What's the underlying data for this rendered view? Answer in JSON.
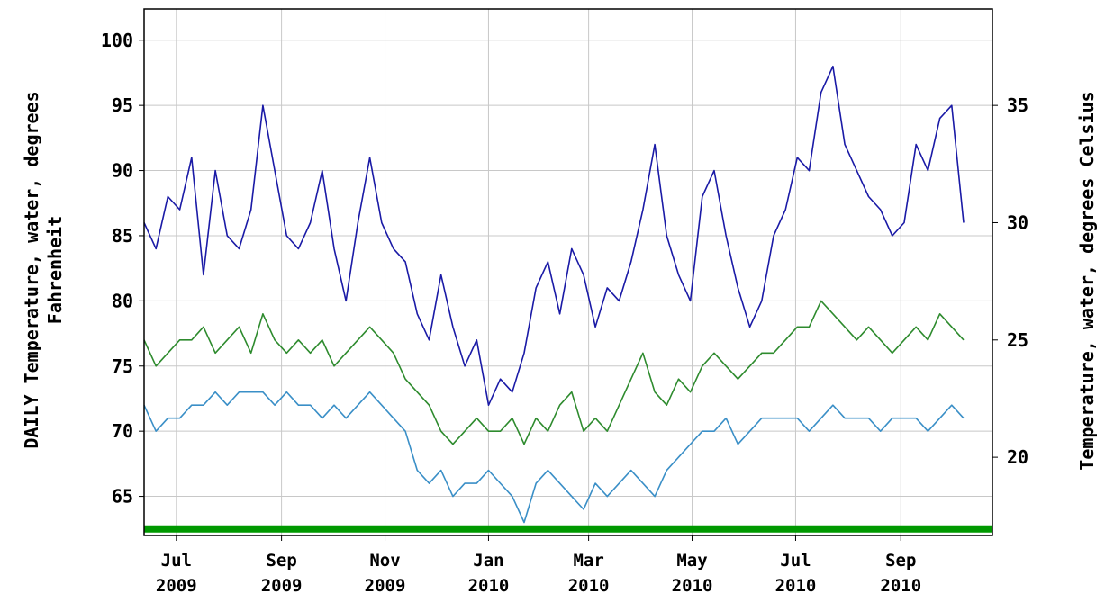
{
  "chart_data": {
    "type": "line",
    "title": "",
    "ylabel": "DAILY Temperature, water, degrees Fahrenheit",
    "ylabel_lines": [
      "DAILY Temperature, water, degrees",
      "Fahrenheit"
    ],
    "ylabel_right": "Temperature, water, degrees Celsius",
    "xlabel": "",
    "xlim": [
      "2009-06-12",
      "2010-10-25"
    ],
    "ylim": [
      62,
      102.4
    ],
    "ylim_right_celsius": [
      16.67,
      39.11
    ],
    "y_ticks": [
      65,
      70,
      75,
      80,
      85,
      90,
      95,
      100
    ],
    "y_ticks_right": [
      20,
      25,
      30,
      35
    ],
    "grid": true,
    "legend": "none",
    "x_ticks": [
      {
        "date": "2009-07-01",
        "label": [
          "Jul",
          "2009"
        ]
      },
      {
        "date": "2009-09-01",
        "label": [
          "Sep",
          "2009"
        ]
      },
      {
        "date": "2009-11-01",
        "label": [
          "Nov",
          "2009"
        ]
      },
      {
        "date": "2010-01-01",
        "label": [
          "Jan",
          "2010"
        ]
      },
      {
        "date": "2010-03-01",
        "label": [
          "Mar",
          "2010"
        ]
      },
      {
        "date": "2010-05-01",
        "label": [
          "May",
          "2010"
        ]
      },
      {
        "date": "2010-07-01",
        "label": [
          "Jul",
          "2010"
        ]
      },
      {
        "date": "2010-09-01",
        "label": [
          "Sep",
          "2010"
        ]
      }
    ],
    "series": [
      {
        "color": "#1a1aa6",
        "x": [
          "2009-06-12",
          "2009-06-19",
          "2009-06-26",
          "2009-07-03",
          "2009-07-10",
          "2009-07-17",
          "2009-07-24",
          "2009-07-31",
          "2009-08-07",
          "2009-08-14",
          "2009-08-21",
          "2009-08-28",
          "2009-09-04",
          "2009-09-11",
          "2009-09-18",
          "2009-09-25",
          "2009-10-02",
          "2009-10-09",
          "2009-10-16",
          "2009-10-23",
          "2009-10-30",
          "2009-11-06",
          "2009-11-13",
          "2009-11-20",
          "2009-11-27",
          "2009-12-04",
          "2009-12-11",
          "2009-12-18",
          "2009-12-25",
          "2010-01-01",
          "2010-01-08",
          "2010-01-15",
          "2010-01-22",
          "2010-01-29",
          "2010-02-05",
          "2010-02-12",
          "2010-02-19",
          "2010-02-26",
          "2010-03-05",
          "2010-03-12",
          "2010-03-19",
          "2010-03-26",
          "2010-04-02",
          "2010-04-09",
          "2010-04-16",
          "2010-04-23",
          "2010-04-30",
          "2010-05-07",
          "2010-05-14",
          "2010-05-21",
          "2010-05-28",
          "2010-06-04",
          "2010-06-11",
          "2010-06-18",
          "2010-06-25",
          "2010-07-02",
          "2010-07-09",
          "2010-07-16",
          "2010-07-23",
          "2010-07-30",
          "2010-08-06",
          "2010-08-13",
          "2010-08-20",
          "2010-08-27",
          "2010-09-03",
          "2010-09-10",
          "2010-09-17",
          "2010-09-24",
          "2010-10-01",
          "2010-10-08"
        ],
        "values": [
          86,
          84,
          88,
          87,
          91,
          82,
          90,
          85,
          84,
          87,
          95,
          90,
          85,
          84,
          86,
          90,
          84,
          80,
          86,
          91,
          86,
          84,
          83,
          79,
          77,
          82,
          78,
          75,
          77,
          72,
          74,
          73,
          76,
          81,
          83,
          79,
          84,
          82,
          78,
          81,
          80,
          83,
          87,
          92,
          85,
          82,
          80,
          88,
          90,
          85,
          81,
          78,
          80,
          85,
          87,
          91,
          90,
          96,
          98,
          92,
          90,
          88,
          87,
          85,
          86,
          92,
          90,
          94,
          95,
          86
        ]
      },
      {
        "color": "#2e8b2e",
        "x": [
          "2009-06-12",
          "2009-06-19",
          "2009-06-26",
          "2009-07-03",
          "2009-07-10",
          "2009-07-17",
          "2009-07-24",
          "2009-07-31",
          "2009-08-07",
          "2009-08-14",
          "2009-08-21",
          "2009-08-28",
          "2009-09-04",
          "2009-09-11",
          "2009-09-18",
          "2009-09-25",
          "2009-10-02",
          "2009-10-09",
          "2009-10-16",
          "2009-10-23",
          "2009-10-30",
          "2009-11-06",
          "2009-11-13",
          "2009-11-20",
          "2009-11-27",
          "2009-12-04",
          "2009-12-11",
          "2009-12-18",
          "2009-12-25",
          "2010-01-01",
          "2010-01-08",
          "2010-01-15",
          "2010-01-22",
          "2010-01-29",
          "2010-02-05",
          "2010-02-12",
          "2010-02-19",
          "2010-02-26",
          "2010-03-05",
          "2010-03-12",
          "2010-03-19",
          "2010-03-26",
          "2010-04-02",
          "2010-04-09",
          "2010-04-16",
          "2010-04-23",
          "2010-04-30",
          "2010-05-07",
          "2010-05-14",
          "2010-05-21",
          "2010-05-28",
          "2010-06-04",
          "2010-06-11",
          "2010-06-18",
          "2010-06-25",
          "2010-07-02",
          "2010-07-09",
          "2010-07-16",
          "2010-07-23",
          "2010-07-30",
          "2010-08-06",
          "2010-08-13",
          "2010-08-20",
          "2010-08-27",
          "2010-09-03",
          "2010-09-10",
          "2010-09-17",
          "2010-09-24",
          "2010-10-01",
          "2010-10-08"
        ],
        "values": [
          77,
          75,
          76,
          77,
          77,
          78,
          76,
          77,
          78,
          76,
          79,
          77,
          76,
          77,
          76,
          77,
          75,
          76,
          77,
          78,
          77,
          76,
          74,
          73,
          72,
          70,
          69,
          70,
          71,
          70,
          70,
          71,
          69,
          71,
          70,
          72,
          73,
          70,
          71,
          70,
          72,
          74,
          76,
          73,
          72,
          74,
          73,
          75,
          76,
          75,
          74,
          75,
          76,
          76,
          77,
          78,
          78,
          80,
          79,
          78,
          77,
          78,
          77,
          76,
          77,
          78,
          77,
          79,
          78,
          77
        ]
      },
      {
        "color": "#3a8fc7",
        "x": [
          "2009-06-12",
          "2009-06-19",
          "2009-06-26",
          "2009-07-03",
          "2009-07-10",
          "2009-07-17",
          "2009-07-24",
          "2009-07-31",
          "2009-08-07",
          "2009-08-14",
          "2009-08-21",
          "2009-08-28",
          "2009-09-04",
          "2009-09-11",
          "2009-09-18",
          "2009-09-25",
          "2009-10-02",
          "2009-10-09",
          "2009-10-16",
          "2009-10-23",
          "2009-10-30",
          "2009-11-06",
          "2009-11-13",
          "2009-11-20",
          "2009-11-27",
          "2009-12-04",
          "2009-12-11",
          "2009-12-18",
          "2009-12-25",
          "2010-01-01",
          "2010-01-08",
          "2010-01-15",
          "2010-01-22",
          "2010-01-29",
          "2010-02-05",
          "2010-02-12",
          "2010-02-19",
          "2010-02-26",
          "2010-03-05",
          "2010-03-12",
          "2010-03-19",
          "2010-03-26",
          "2010-04-02",
          "2010-04-09",
          "2010-04-16",
          "2010-04-23",
          "2010-04-30",
          "2010-05-07",
          "2010-05-14",
          "2010-05-21",
          "2010-05-28",
          "2010-06-04",
          "2010-06-11",
          "2010-06-18",
          "2010-06-25",
          "2010-07-02",
          "2010-07-09",
          "2010-07-16",
          "2010-07-23",
          "2010-07-30",
          "2010-08-06",
          "2010-08-13",
          "2010-08-20",
          "2010-08-27",
          "2010-09-03",
          "2010-09-10",
          "2010-09-17",
          "2010-09-24",
          "2010-10-01",
          "2010-10-08"
        ],
        "values": [
          72,
          70,
          71,
          71,
          72,
          72,
          73,
          72,
          73,
          73,
          73,
          72,
          73,
          72,
          72,
          71,
          72,
          71,
          72,
          73,
          72,
          71,
          70,
          67,
          66,
          67,
          65,
          66,
          66,
          67,
          66,
          65,
          63,
          66,
          67,
          66,
          65,
          64,
          66,
          65,
          66,
          67,
          66,
          65,
          67,
          68,
          69,
          70,
          70,
          71,
          69,
          70,
          71,
          71,
          71,
          71,
          70,
          71,
          72,
          71,
          71,
          71,
          70,
          71,
          71,
          71,
          70,
          71,
          72,
          71
        ]
      },
      {
        "color": "#009900",
        "x": [
          "2009-06-12",
          "2010-10-25"
        ],
        "values": [
          62.5,
          62.5
        ]
      }
    ]
  }
}
